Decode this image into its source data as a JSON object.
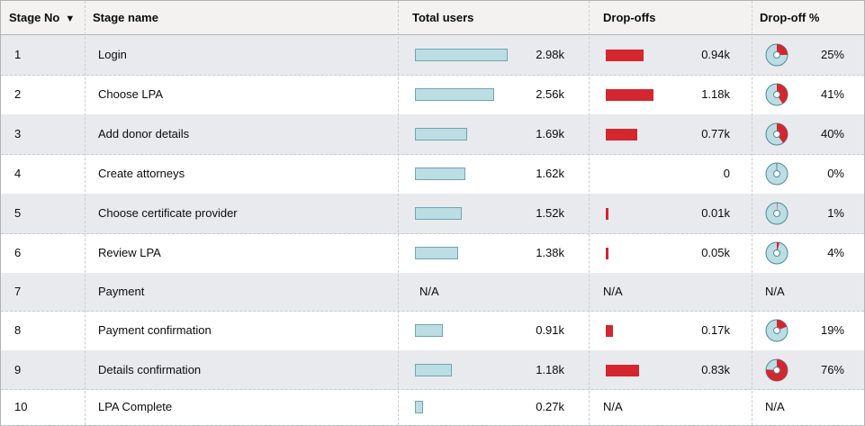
{
  "table": {
    "headers": {
      "stage_no": "Stage No",
      "sort_indicator": "▼",
      "stage_name": "Stage name",
      "total_users": "Total users",
      "dropoffs": "Drop-offs",
      "dropoff_pct": "Drop-off %"
    },
    "colors": {
      "users_bar": "#bcdde3",
      "drop_bar": "#d4262f",
      "pie_bg": "#bcdde3",
      "pie_fill": "#d4262f"
    },
    "rows": [
      {
        "no": "1",
        "name": "Login",
        "users": "2.98k",
        "users_val": 2.98,
        "drops": "0.94k",
        "drops_val": 0.94,
        "pct": "25%",
        "pct_val": 25
      },
      {
        "no": "2",
        "name": "Choose LPA",
        "users": "2.56k",
        "users_val": 2.56,
        "drops": "1.18k",
        "drops_val": 1.18,
        "pct": "41%",
        "pct_val": 41
      },
      {
        "no": "3",
        "name": "Add donor details",
        "users": "1.69k",
        "users_val": 1.69,
        "drops": "0.77k",
        "drops_val": 0.77,
        "pct": "40%",
        "pct_val": 40
      },
      {
        "no": "4",
        "name": "Create attorneys",
        "users": "1.62k",
        "users_val": 1.62,
        "drops": "0",
        "drops_val": 0,
        "pct": "0%",
        "pct_val": 0
      },
      {
        "no": "5",
        "name": "Choose certificate provider",
        "users": "1.52k",
        "users_val": 1.52,
        "drops": "0.01k",
        "drops_val": 0.01,
        "pct": "1%",
        "pct_val": 1
      },
      {
        "no": "6",
        "name": "Review LPA",
        "users": "1.38k",
        "users_val": 1.38,
        "drops": "0.05k",
        "drops_val": 0.05,
        "pct": "4%",
        "pct_val": 4
      },
      {
        "no": "7",
        "name": "Payment",
        "users": "N/A",
        "users_val": null,
        "drops": "N/A",
        "drops_val": null,
        "pct": "N/A",
        "pct_val": null
      },
      {
        "no": "8",
        "name": "Payment confirmation",
        "users": "0.91k",
        "users_val": 0.91,
        "drops": "0.17k",
        "drops_val": 0.17,
        "pct": "19%",
        "pct_val": 19
      },
      {
        "no": "9",
        "name": "Details confirmation",
        "users": "1.18k",
        "users_val": 1.18,
        "drops": "0.83k",
        "drops_val": 0.83,
        "pct": "76%",
        "pct_val": 76
      },
      {
        "no": "10",
        "name": "LPA Complete",
        "users": "0.27k",
        "users_val": 0.27,
        "drops": "N/A",
        "drops_val": null,
        "pct": "N/A",
        "pct_val": null
      }
    ]
  }
}
